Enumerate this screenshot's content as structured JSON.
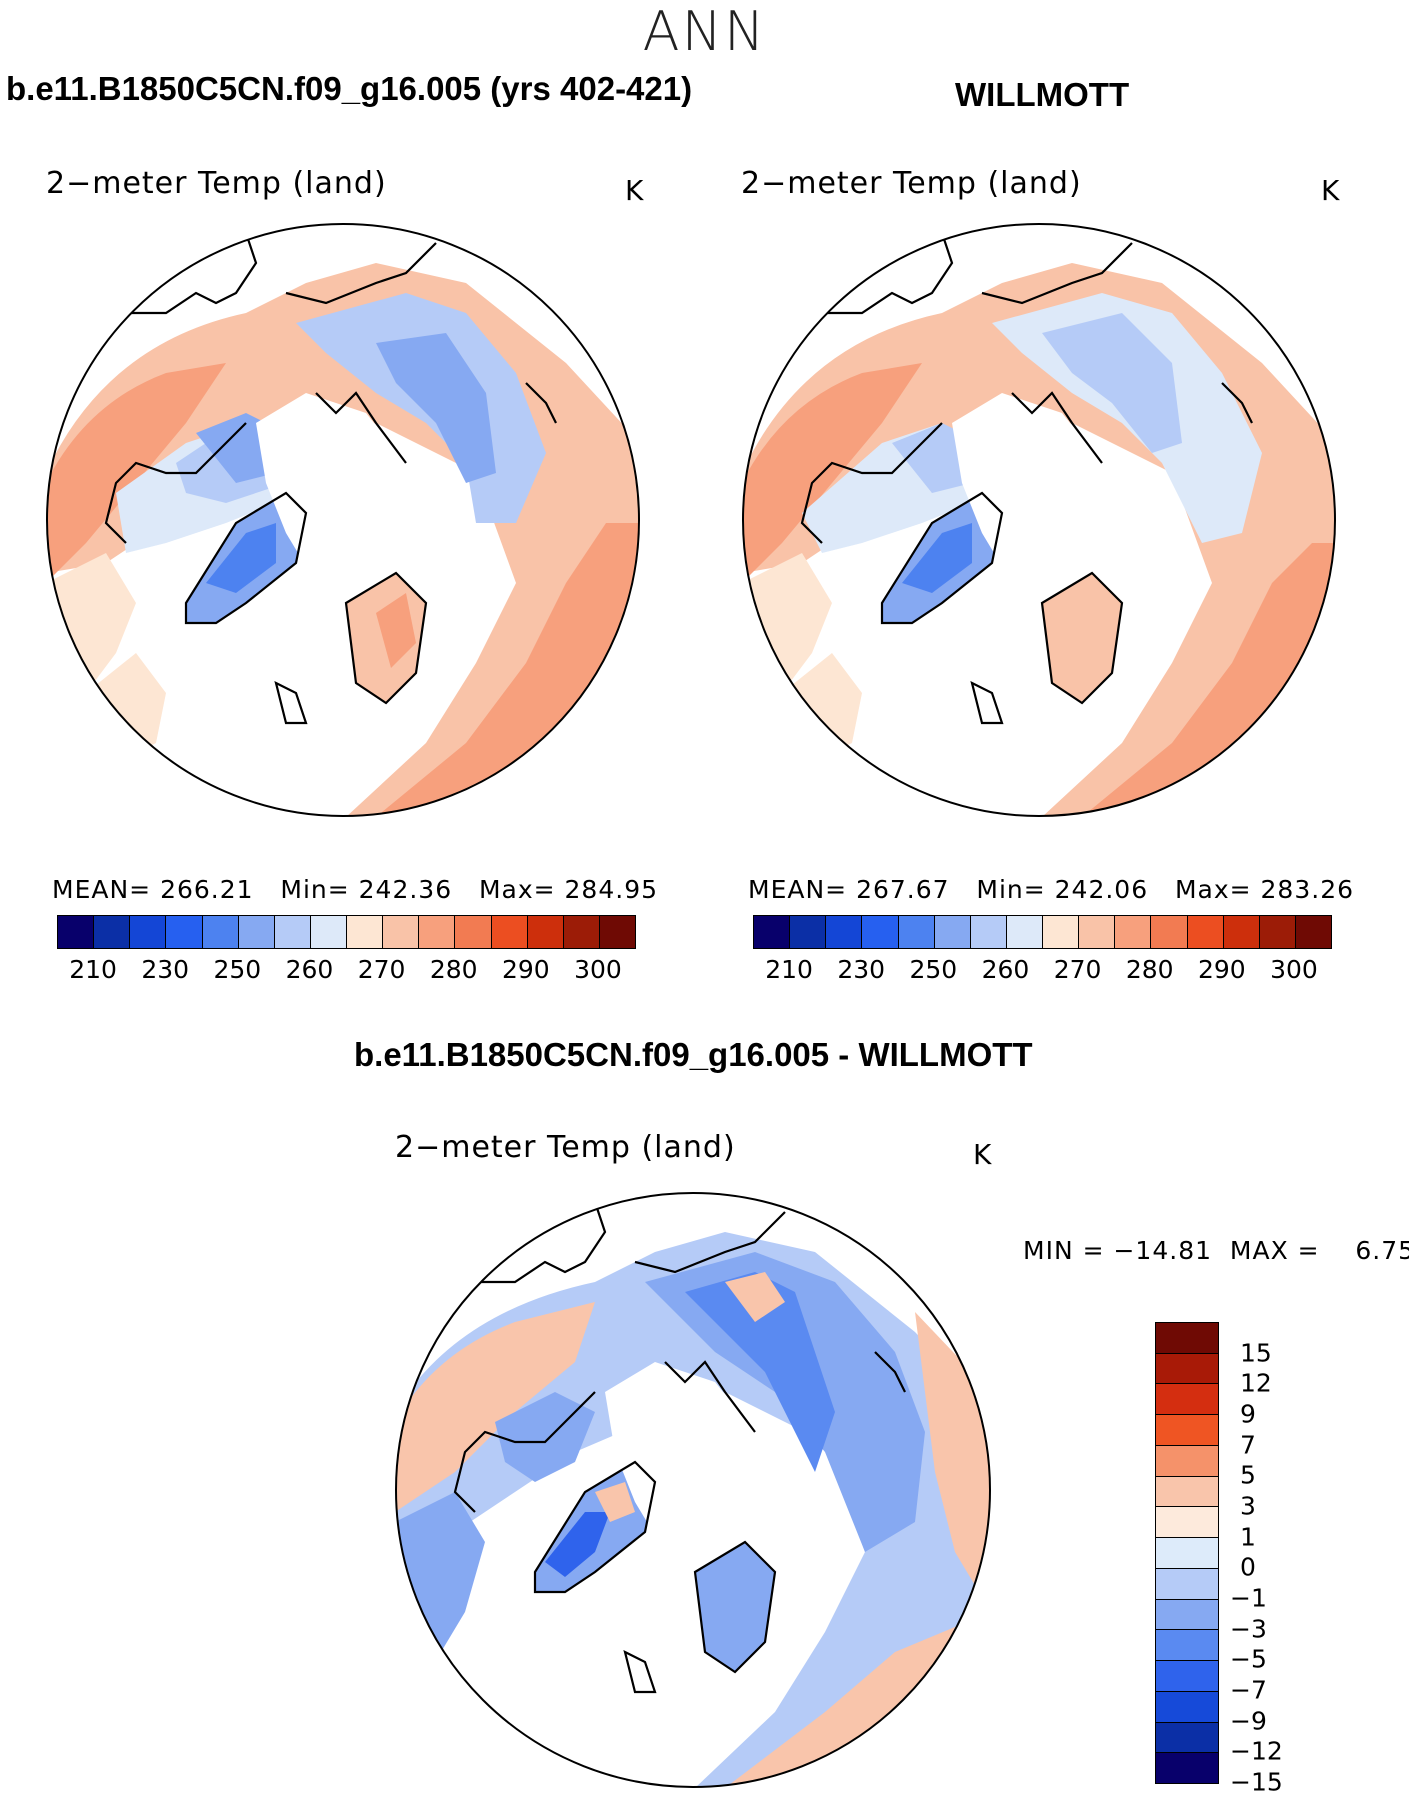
{
  "season": "ANN",
  "colors": {
    "abs_scale": [
      "#08006b",
      "#0b2fa6",
      "#1446d6",
      "#2660f0",
      "#4d82f0",
      "#86a9f2",
      "#b5cbf7",
      "#dde9f9",
      "#fde6d3",
      "#f9c3a8",
      "#f7a07d",
      "#f27b52",
      "#ec4e21",
      "#cd2f0c",
      "#9c1c07",
      "#6f0a04"
    ],
    "diff_scale": [
      "#6f0a04",
      "#a81a07",
      "#d42e10",
      "#ef5523",
      "#f5926a",
      "#f9c5ab",
      "#fdeadc",
      "#ddebfa",
      "#b5cbf7",
      "#86a9f2",
      "#5a8af1",
      "#2f63ec",
      "#164ad9",
      "#0b2fa6",
      "#08006b"
    ],
    "coast": "#000000",
    "land_missing": "#ffffff"
  },
  "panels": {
    "model": {
      "case_title": "b.e11.B1850C5CN.f09_g16.005 (yrs 402-421)",
      "field_title": "2−meter Temp (land)",
      "units": "K",
      "stats": "MEAN= 266.21   Min= 242.36   Max= 284.95",
      "ticks": [
        "210",
        "230",
        "250",
        "260",
        "270",
        "280",
        "290",
        "300"
      ]
    },
    "obs": {
      "case_title": "WILLMOTT",
      "field_title": "2−meter Temp (land)",
      "units": "K",
      "stats": "MEAN= 267.67   Min= 242.06   Max= 283.26",
      "ticks": [
        "210",
        "230",
        "250",
        "260",
        "270",
        "280",
        "290",
        "300"
      ]
    },
    "diff": {
      "case_title": "b.e11.B1850C5CN.f09_g16.005 - WILLMOTT",
      "field_title": "2−meter Temp (land)",
      "units": "K",
      "stats": "MIN = −14.81  MAX =    6.75",
      "ticks": [
        "15",
        "12",
        "9",
        "7",
        "5",
        "3",
        "1",
        "0",
        "−1",
        "−3",
        "−5",
        "−7",
        "−9",
        "−12",
        "−15"
      ]
    }
  }
}
